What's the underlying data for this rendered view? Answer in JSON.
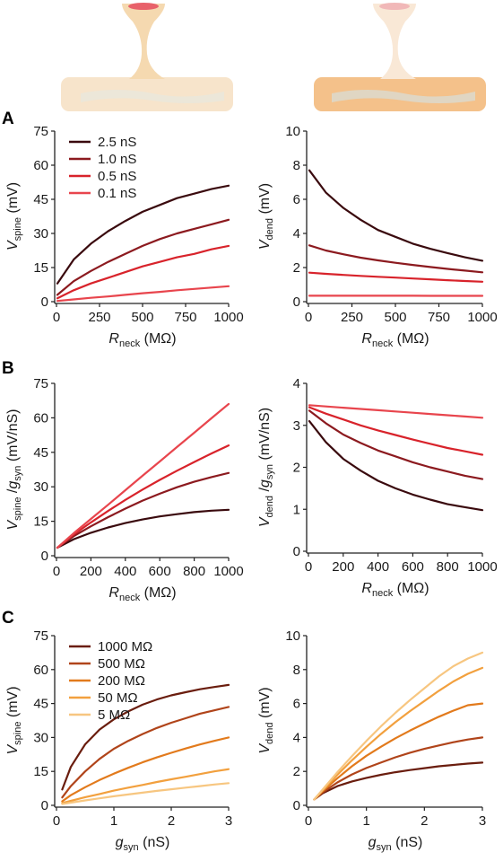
{
  "panel_labels": [
    "A",
    "B",
    "C"
  ],
  "colors": {
    "gsyn": [
      "#3a0a0e",
      "#8c1a1f",
      "#d8232b",
      "#e8454d"
    ],
    "rneck": [
      "#6a1d0e",
      "#b0441a",
      "#e27a1c",
      "#f2a03e",
      "#f7c680"
    ],
    "spine_skin": "#f5d9b0",
    "spine_head": "#e8616a",
    "dendrite_light": "#f8e2c4",
    "dendrite_dark": "#f4c18a",
    "dendrite_mark": "#d4d4c8"
  },
  "chart_data": [
    {
      "id": "A-left",
      "type": "line",
      "ylabel": {
        "main": "V",
        "sub": "spine",
        "unit": "(mV)"
      },
      "xlabel": {
        "main": "R",
        "sub": "neck",
        "unit": "(MΩ)"
      },
      "xlim": [
        0,
        1000
      ],
      "xticks": [
        "0",
        "250",
        "500",
        "750",
        "1000"
      ],
      "ylim": [
        0,
        75
      ],
      "yticks": [
        "0",
        "15",
        "30",
        "45",
        "60",
        "75"
      ],
      "legend": [
        "2.5 nS",
        "1.0 nS",
        "0.5 nS",
        "0.1 nS"
      ],
      "series": [
        {
          "name": "2.5 nS",
          "x": [
            5,
            100,
            200,
            300,
            400,
            500,
            600,
            700,
            800,
            900,
            1000
          ],
          "y": [
            8,
            18.5,
            25.5,
            31,
            35.5,
            39.5,
            42.5,
            45.5,
            47.5,
            49.5,
            51
          ]
        },
        {
          "name": "1.0 nS",
          "x": [
            5,
            100,
            200,
            300,
            400,
            500,
            600,
            700,
            800,
            900,
            1000
          ],
          "y": [
            3,
            9,
            13.5,
            17.5,
            21,
            24.5,
            27.5,
            30,
            32,
            34,
            36
          ]
        },
        {
          "name": "0.5 nS",
          "x": [
            5,
            100,
            200,
            300,
            400,
            500,
            600,
            700,
            800,
            900,
            1000
          ],
          "y": [
            1.5,
            5,
            8,
            10.5,
            13,
            15.5,
            17.5,
            19.5,
            21,
            23,
            24.5
          ]
        },
        {
          "name": "0.1 nS",
          "x": [
            5,
            100,
            200,
            300,
            400,
            500,
            600,
            700,
            800,
            900,
            1000
          ],
          "y": [
            0.3,
            1,
            1.7,
            2.3,
            3,
            3.7,
            4.3,
            5,
            5.6,
            6.2,
            6.8
          ]
        }
      ]
    },
    {
      "id": "A-right",
      "type": "line",
      "ylabel": {
        "main": "V",
        "sub": "dend",
        "unit": "(mV)"
      },
      "xlabel": {
        "main": "R",
        "sub": "neck",
        "unit": "(MΩ)"
      },
      "xlim": [
        0,
        1000
      ],
      "xticks": [
        "0",
        "250",
        "500",
        "750",
        "1000"
      ],
      "ylim": [
        0,
        10
      ],
      "yticks": [
        "0",
        "2",
        "4",
        "6",
        "8",
        "10"
      ],
      "series": [
        {
          "name": "2.5 nS",
          "x": [
            5,
            100,
            200,
            300,
            400,
            500,
            600,
            700,
            800,
            900,
            1000
          ],
          "y": [
            7.7,
            6.4,
            5.5,
            4.8,
            4.2,
            3.8,
            3.4,
            3.1,
            2.85,
            2.6,
            2.4
          ]
        },
        {
          "name": "1.0 nS",
          "x": [
            5,
            100,
            200,
            300,
            400,
            500,
            600,
            700,
            800,
            900,
            1000
          ],
          "y": [
            3.3,
            3.0,
            2.78,
            2.58,
            2.42,
            2.28,
            2.15,
            2.03,
            1.92,
            1.82,
            1.72
          ]
        },
        {
          "name": "0.5 nS",
          "x": [
            5,
            100,
            200,
            300,
            400,
            500,
            600,
            700,
            800,
            900,
            1000
          ],
          "y": [
            1.7,
            1.63,
            1.57,
            1.51,
            1.46,
            1.41,
            1.36,
            1.31,
            1.26,
            1.21,
            1.17
          ]
        },
        {
          "name": "0.1 nS",
          "x": [
            5,
            100,
            200,
            300,
            400,
            500,
            600,
            700,
            800,
            900,
            1000
          ],
          "y": [
            0.35,
            0.35,
            0.35,
            0.35,
            0.35,
            0.35,
            0.35,
            0.34,
            0.34,
            0.34,
            0.34
          ]
        }
      ]
    },
    {
      "id": "B-left",
      "type": "line",
      "ylabel": {
        "main": "V",
        "sub": "spine",
        "mid": " /",
        "main2": "g",
        "sub2": "syn",
        "unit": "(mV/nS)"
      },
      "xlabel": {
        "main": "R",
        "sub": "neck",
        "unit": "(MΩ)"
      },
      "xlim": [
        0,
        1000
      ],
      "xticks": [
        "0",
        "200",
        "400",
        "600",
        "800",
        "1000"
      ],
      "ylim": [
        0,
        75
      ],
      "yticks": [
        "0",
        "15",
        "30",
        "45",
        "60",
        "75"
      ],
      "series": [
        {
          "name": "2.5 nS",
          "x": [
            5,
            100,
            200,
            300,
            400,
            500,
            600,
            700,
            800,
            900,
            1000
          ],
          "y": [
            3.5,
            7.2,
            10,
            12.3,
            14.2,
            15.8,
            17.1,
            18.1,
            19,
            19.6,
            20
          ]
        },
        {
          "name": "1.0 nS",
          "x": [
            5,
            100,
            200,
            300,
            400,
            500,
            600,
            700,
            800,
            900,
            1000
          ],
          "y": [
            3.5,
            8.5,
            12.8,
            16.8,
            20.5,
            24,
            27,
            29.8,
            32.2,
            34.2,
            36
          ]
        },
        {
          "name": "0.5 nS",
          "x": [
            5,
            100,
            200,
            300,
            400,
            500,
            600,
            700,
            800,
            900,
            1000
          ],
          "y": [
            3.5,
            9.2,
            14.5,
            19.5,
            24.3,
            28.8,
            33,
            37,
            40.8,
            44.5,
            48
          ]
        },
        {
          "name": "0.1 nS",
          "x": [
            5,
            100,
            200,
            300,
            400,
            500,
            600,
            700,
            800,
            900,
            1000
          ],
          "y": [
            3.5,
            9.8,
            16,
            22.2,
            28.5,
            34.8,
            41,
            47.3,
            53.5,
            59.8,
            66
          ]
        }
      ]
    },
    {
      "id": "B-right",
      "type": "line",
      "ylabel": {
        "main": "V",
        "sub": "dend",
        "mid": " /",
        "main2": "g",
        "sub2": "syn",
        "unit": "(mV/nS)"
      },
      "xlabel": {
        "main": "R",
        "sub": "neck",
        "unit": "(MΩ)"
      },
      "xlim": [
        0,
        1000
      ],
      "xticks": [
        "0",
        "200",
        "400",
        "600",
        "800",
        "1000"
      ],
      "ylim": [
        0,
        4
      ],
      "yticks": [
        "0",
        "1",
        "2",
        "3",
        "4"
      ],
      "series": [
        {
          "name": "2.5 nS",
          "x": [
            5,
            100,
            200,
            300,
            400,
            500,
            600,
            700,
            800,
            900,
            1000
          ],
          "y": [
            3.1,
            2.6,
            2.2,
            1.92,
            1.68,
            1.5,
            1.35,
            1.23,
            1.12,
            1.05,
            0.98
          ]
        },
        {
          "name": "1.0 nS",
          "x": [
            5,
            100,
            200,
            300,
            400,
            500,
            600,
            700,
            800,
            900,
            1000
          ],
          "y": [
            3.35,
            3.05,
            2.78,
            2.58,
            2.4,
            2.26,
            2.12,
            2.0,
            1.9,
            1.8,
            1.72
          ]
        },
        {
          "name": "0.5 nS",
          "x": [
            5,
            100,
            200,
            300,
            400,
            500,
            600,
            700,
            800,
            900,
            1000
          ],
          "y": [
            3.43,
            3.28,
            3.14,
            3.0,
            2.88,
            2.77,
            2.66,
            2.56,
            2.46,
            2.38,
            2.3
          ]
        },
        {
          "name": "0.1 nS",
          "x": [
            5,
            100,
            200,
            300,
            400,
            500,
            600,
            700,
            800,
            900,
            1000
          ],
          "y": [
            3.48,
            3.45,
            3.42,
            3.39,
            3.36,
            3.33,
            3.3,
            3.27,
            3.24,
            3.21,
            3.18
          ]
        }
      ]
    },
    {
      "id": "C-left",
      "type": "line",
      "ylabel": {
        "main": "V",
        "sub": "spine",
        "unit": "(mV)"
      },
      "xlabel": {
        "main": "g",
        "sub": "syn",
        "unit": "(nS)"
      },
      "xlim": [
        0,
        3
      ],
      "xticks": [
        "0",
        "1",
        "2",
        "3"
      ],
      "ylim": [
        0,
        75
      ],
      "yticks": [
        "0",
        "15",
        "30",
        "45",
        "60",
        "75"
      ],
      "legend": [
        "1000 MΩ",
        "500 MΩ",
        "200 MΩ",
        "50 MΩ",
        "5 MΩ"
      ],
      "series": [
        {
          "name": "1000 MΩ",
          "x": [
            0.1,
            0.25,
            0.5,
            0.75,
            1,
            1.25,
            1.5,
            1.75,
            2,
            2.25,
            2.5,
            2.75,
            3
          ],
          "y": [
            7,
            17,
            27,
            33.5,
            38,
            41.5,
            44.5,
            46.8,
            48.6,
            50,
            51.3,
            52.3,
            53.2
          ]
        },
        {
          "name": "500 MΩ",
          "x": [
            0.1,
            0.25,
            0.5,
            0.75,
            1,
            1.25,
            1.5,
            1.75,
            2,
            2.25,
            2.5,
            2.75,
            3
          ],
          "y": [
            3.5,
            8.5,
            15,
            20.5,
            25,
            28.5,
            31.5,
            34.2,
            36.5,
            38.5,
            40.5,
            42,
            43.5
          ]
        },
        {
          "name": "200 MΩ",
          "x": [
            0.1,
            0.25,
            0.5,
            0.75,
            1,
            1.25,
            1.5,
            1.75,
            2,
            2.25,
            2.5,
            2.75,
            3
          ],
          "y": [
            1.8,
            4.5,
            8,
            11.2,
            14,
            16.6,
            19,
            21.2,
            23.2,
            25.1,
            26.9,
            28.5,
            30
          ]
        },
        {
          "name": "50 MΩ",
          "x": [
            0.1,
            0.25,
            0.5,
            0.75,
            1,
            1.25,
            1.5,
            1.75,
            2,
            2.25,
            2.5,
            2.75,
            3
          ],
          "y": [
            1,
            2,
            3.6,
            5,
            6.5,
            7.8,
            9,
            10.3,
            11.5,
            12.6,
            13.8,
            15,
            16
          ]
        },
        {
          "name": "5 MΩ",
          "x": [
            0.1,
            0.25,
            0.5,
            0.75,
            1,
            1.25,
            1.5,
            1.75,
            2,
            2.25,
            2.5,
            2.75,
            3
          ],
          "y": [
            0.6,
            1.2,
            2.2,
            3.1,
            4,
            4.8,
            5.6,
            6.4,
            7.1,
            7.8,
            8.5,
            9.2,
            9.8
          ]
        }
      ]
    },
    {
      "id": "C-right",
      "type": "line",
      "ylabel": {
        "main": "V",
        "sub": "dend",
        "unit": "(mV)"
      },
      "xlabel": {
        "main": "g",
        "sub": "syn",
        "unit": "(nS)"
      },
      "xlim": [
        0,
        3
      ],
      "xticks": [
        "0",
        "1",
        "2",
        "3"
      ],
      "ylim": [
        0,
        10
      ],
      "yticks": [
        "0",
        "2",
        "4",
        "6",
        "8",
        "10"
      ],
      "series": [
        {
          "name": "1000 MΩ",
          "x": [
            0.1,
            0.25,
            0.5,
            0.75,
            1,
            1.25,
            1.5,
            1.75,
            2,
            2.25,
            2.5,
            2.75,
            3
          ],
          "y": [
            0.35,
            0.72,
            1.13,
            1.41,
            1.62,
            1.8,
            1.95,
            2.08,
            2.19,
            2.3,
            2.38,
            2.46,
            2.52
          ]
        },
        {
          "name": "500 MΩ",
          "x": [
            0.1,
            0.25,
            0.5,
            0.75,
            1,
            1.25,
            1.5,
            1.75,
            2,
            2.25,
            2.5,
            2.75,
            3
          ],
          "y": [
            0.35,
            0.78,
            1.35,
            1.82,
            2.2,
            2.52,
            2.83,
            3.1,
            3.33,
            3.53,
            3.72,
            3.88,
            4.0
          ]
        },
        {
          "name": "200 MΩ",
          "x": [
            0.1,
            0.25,
            0.5,
            0.75,
            1,
            1.25,
            1.5,
            1.75,
            2,
            2.25,
            2.5,
            2.75,
            3
          ],
          "y": [
            0.35,
            0.85,
            1.6,
            2.3,
            2.92,
            3.45,
            3.95,
            4.4,
            4.82,
            5.22,
            5.58,
            5.9,
            6.0
          ]
        },
        {
          "name": "50 MΩ",
          "x": [
            0.1,
            0.25,
            0.5,
            0.75,
            1,
            1.25,
            1.5,
            1.75,
            2,
            2.25,
            2.5,
            2.75,
            3
          ],
          "y": [
            0.35,
            0.9,
            1.8,
            2.65,
            3.45,
            4.2,
            4.9,
            5.55,
            6.15,
            6.75,
            7.3,
            7.75,
            8.1
          ]
        },
        {
          "name": "5 MΩ",
          "x": [
            0.1,
            0.25,
            0.5,
            0.75,
            1,
            1.25,
            1.5,
            1.75,
            2,
            2.25,
            2.5,
            2.75,
            3
          ],
          "y": [
            0.35,
            0.95,
            1.95,
            2.9,
            3.8,
            4.65,
            5.45,
            6.2,
            6.9,
            7.6,
            8.2,
            8.65,
            9.0
          ]
        }
      ]
    }
  ]
}
